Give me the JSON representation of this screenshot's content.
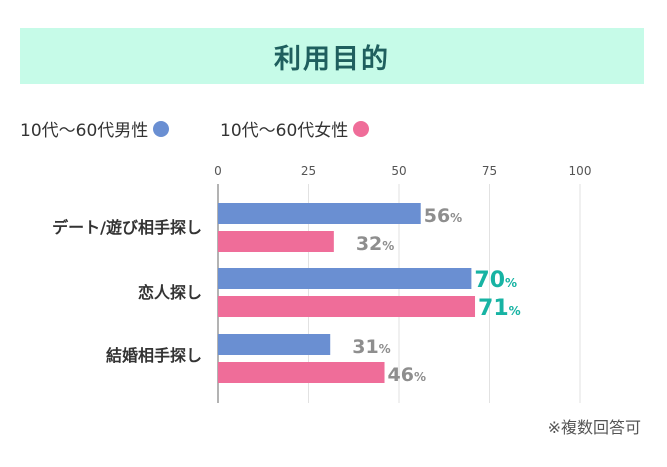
{
  "chart_data": {
    "type": "bar",
    "orientation": "horizontal",
    "title": "利用目的",
    "categories": [
      "デート/遊び相手探し",
      "恋人探し",
      "結婚相手探し"
    ],
    "series": [
      {
        "name": "10代〜60代男性",
        "values": [
          56,
          70,
          31
        ],
        "color": "#6a8fd2"
      },
      {
        "name": "10代〜60代女性",
        "values": [
          32,
          71,
          46
        ],
        "color": "#ef6d99"
      }
    ],
    "value_labels": [
      [
        "56",
        "70",
        "31"
      ],
      [
        "32",
        "71",
        "46"
      ]
    ],
    "unit": "%",
    "xticks": [
      "0",
      "25",
      "50",
      "75",
      "100"
    ],
    "xlim": [
      0,
      100
    ],
    "grid": true,
    "legend_position": "top-left",
    "highlight_category": "恋人探し",
    "highlight_color": "#17b3a3",
    "label_color": "#8e8e8e",
    "note": "※複数回答可"
  }
}
